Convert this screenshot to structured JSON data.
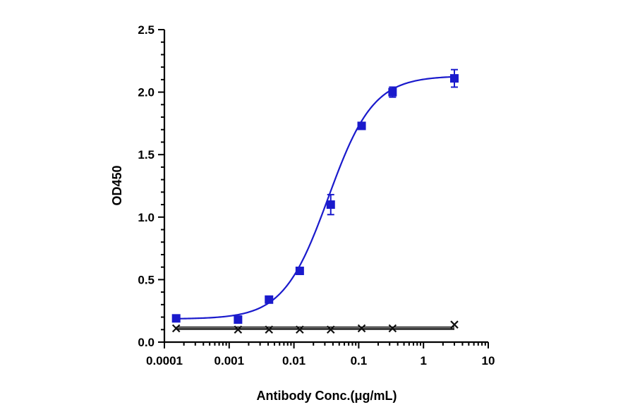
{
  "chart_data": {
    "type": "scatter",
    "xlabel": "Antibody Conc.(μg/mL)",
    "ylabel": "OD450",
    "x_scale": "log",
    "xlim": [
      0.0001,
      10
    ],
    "ylim": [
      0,
      2.5
    ],
    "x_ticks": [
      {
        "value": 0.0001,
        "label": "0.0001"
      },
      {
        "value": 0.001,
        "label": "0.001"
      },
      {
        "value": 0.01,
        "label": "0.01"
      },
      {
        "value": 0.1,
        "label": "0.1"
      },
      {
        "value": 1,
        "label": "1"
      },
      {
        "value": 10,
        "label": "10"
      }
    ],
    "y_ticks": [
      {
        "value": 0,
        "label": "0.0"
      },
      {
        "value": 0.5,
        "label": "0.5"
      },
      {
        "value": 1.0,
        "label": "1.0"
      },
      {
        "value": 1.5,
        "label": "1.5"
      },
      {
        "value": 2.0,
        "label": "2.0"
      },
      {
        "value": 2.5,
        "label": "2.5"
      }
    ],
    "grid": false,
    "legend": "none",
    "series": [
      {
        "marker": "square",
        "color": "#1a1acc",
        "fit": "4PL sigmoidal curve",
        "x": [
          0.000152,
          0.00137,
          0.00412,
          0.0123,
          0.037,
          0.111,
          0.333,
          3
        ],
        "y": [
          0.19,
          0.18,
          0.34,
          0.57,
          1.1,
          1.73,
          2.0,
          2.11
        ],
        "err": [
          0.01,
          0.01,
          0.02,
          0.02,
          0.08,
          0.02,
          0.04,
          0.07
        ]
      },
      {
        "marker": "x",
        "color": "#111111",
        "fit": "flat line",
        "x": [
          0.000152,
          0.00137,
          0.00412,
          0.0123,
          0.037,
          0.111,
          0.333,
          3
        ],
        "y": [
          0.11,
          0.1,
          0.1,
          0.1,
          0.1,
          0.11,
          0.11,
          0.14
        ],
        "err": [
          0,
          0,
          0,
          0,
          0,
          0,
          0,
          0
        ]
      }
    ]
  }
}
